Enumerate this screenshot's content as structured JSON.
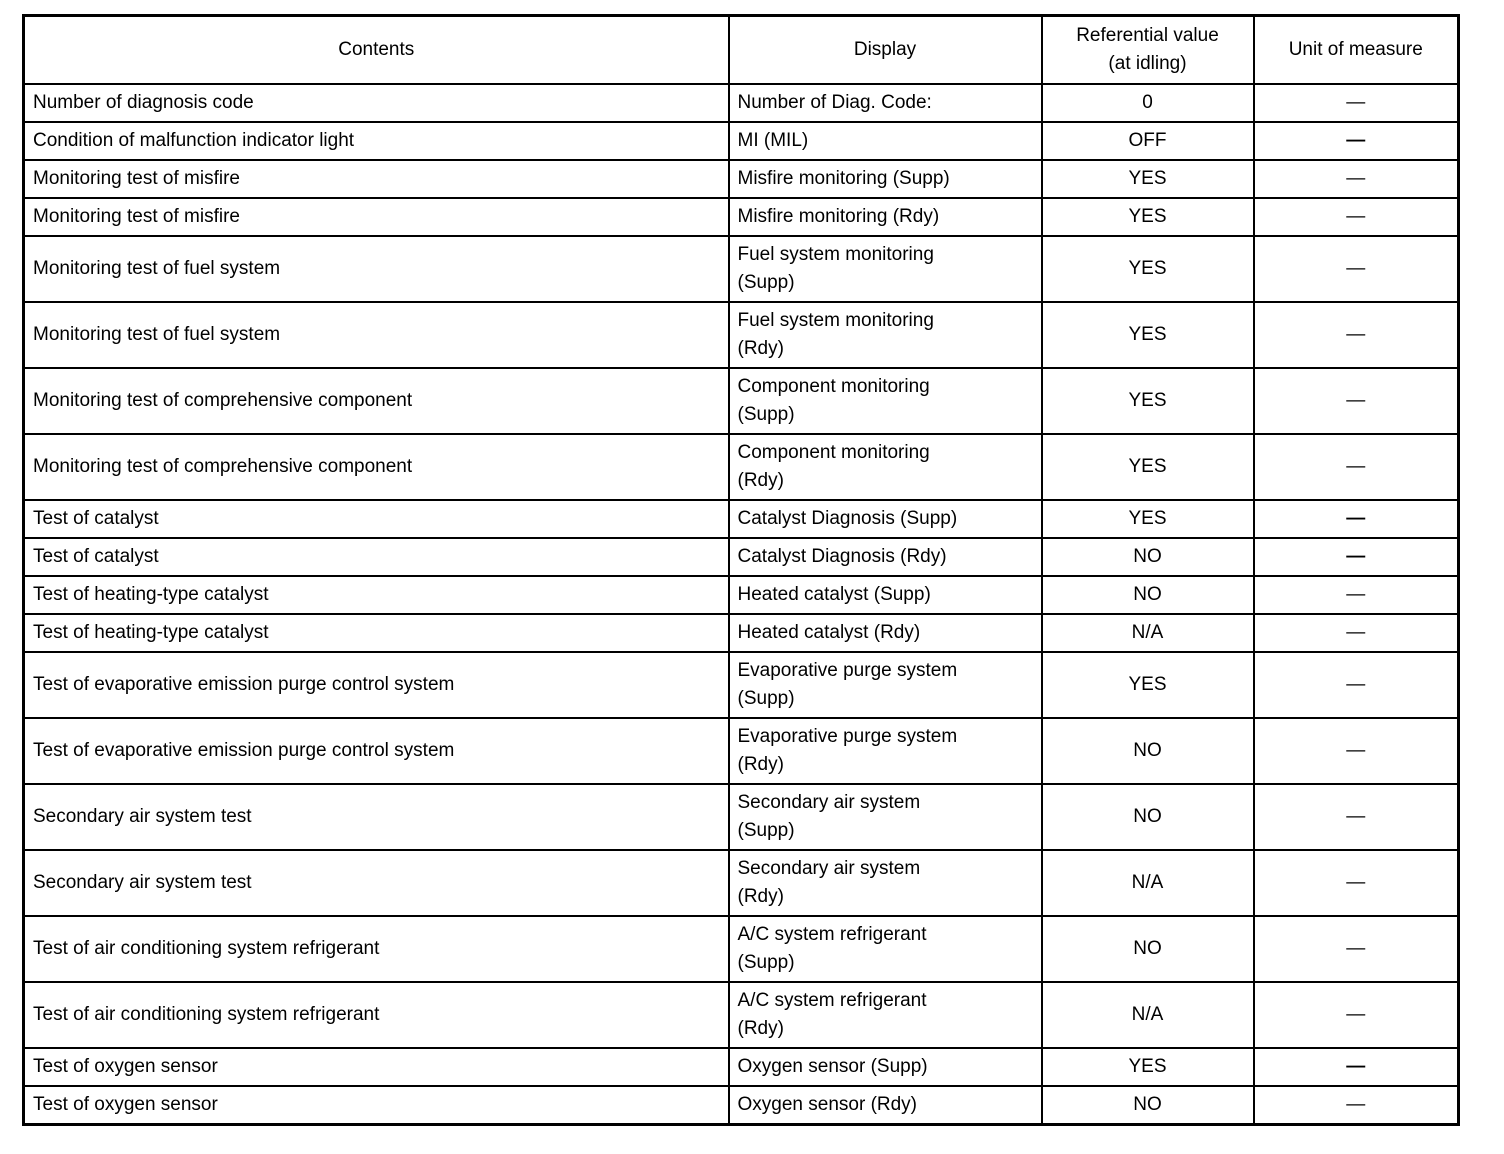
{
  "table": {
    "headers": {
      "contents": "Contents",
      "display": "Display",
      "value": "Referential value\n(at idling)",
      "unit": "Unit of measure"
    },
    "rows": [
      {
        "contents": "Number of diagnosis code",
        "display": "Number of Diag. Code:",
        "value": "0",
        "unit": "—",
        "unit_bold": false
      },
      {
        "contents": "Condition of malfunction indicator light",
        "display": "MI (MIL)",
        "value": "OFF",
        "unit": "—",
        "unit_bold": true
      },
      {
        "contents": "Monitoring test of misfire",
        "display": "Misfire monitoring (Supp)",
        "value": "YES",
        "unit": "—",
        "unit_bold": false
      },
      {
        "contents": "Monitoring test of misfire",
        "display": "Misfire monitoring (Rdy)",
        "value": "YES",
        "unit": "—",
        "unit_bold": false
      },
      {
        "contents": "Monitoring test of fuel system",
        "display": "Fuel system monitoring\n(Supp)",
        "value": "YES",
        "unit": "—",
        "unit_bold": false
      },
      {
        "contents": "Monitoring test of fuel system",
        "display": "Fuel system monitoring\n(Rdy)",
        "value": "YES",
        "unit": "—",
        "unit_bold": false
      },
      {
        "contents": "Monitoring test of comprehensive component",
        "display": "Component monitoring\n(Supp)",
        "value": "YES",
        "unit": "—",
        "unit_bold": false
      },
      {
        "contents": "Monitoring test of comprehensive component",
        "display": "Component monitoring\n(Rdy)",
        "value": "YES",
        "unit": "—",
        "unit_bold": false
      },
      {
        "contents": "Test of catalyst",
        "display": "Catalyst Diagnosis (Supp)",
        "value": "YES",
        "unit": "—",
        "unit_bold": true
      },
      {
        "contents": "Test of catalyst",
        "display": "Catalyst Diagnosis (Rdy)",
        "value": "NO",
        "unit": "—",
        "unit_bold": true
      },
      {
        "contents": "Test of heating-type catalyst",
        "display": "Heated catalyst (Supp)",
        "value": "NO",
        "unit": "—",
        "unit_bold": false
      },
      {
        "contents": "Test of heating-type catalyst",
        "display": "Heated catalyst (Rdy)",
        "value": "N/A",
        "unit": "—",
        "unit_bold": false
      },
      {
        "contents": "Test of evaporative emission purge control system",
        "display": "Evaporative purge system\n(Supp)",
        "value": "YES",
        "unit": "—",
        "unit_bold": false
      },
      {
        "contents": "Test of evaporative emission purge control system",
        "display": "Evaporative purge system\n(Rdy)",
        "value": "NO",
        "unit": "—",
        "unit_bold": false
      },
      {
        "contents": "Secondary air system test",
        "display": "Secondary air system\n(Supp)",
        "value": "NO",
        "unit": "—",
        "unit_bold": false
      },
      {
        "contents": "Secondary air system test",
        "display": "Secondary air system\n(Rdy)",
        "value": "N/A",
        "unit": "—",
        "unit_bold": false
      },
      {
        "contents": "Test of air conditioning system refrigerant",
        "display": "A/C system refrigerant\n(Supp)",
        "value": "NO",
        "unit": "—",
        "unit_bold": false
      },
      {
        "contents": "Test of air conditioning system refrigerant",
        "display": "A/C system refrigerant\n(Rdy)",
        "value": "N/A",
        "unit": "—",
        "unit_bold": false
      },
      {
        "contents": "Test of oxygen sensor",
        "display": "Oxygen sensor (Supp)",
        "value": "YES",
        "unit": "—",
        "unit_bold": true
      },
      {
        "contents": "Test of oxygen sensor",
        "display": "Oxygen sensor (Rdy)",
        "value": "NO",
        "unit": "—",
        "unit_bold": false
      }
    ]
  }
}
